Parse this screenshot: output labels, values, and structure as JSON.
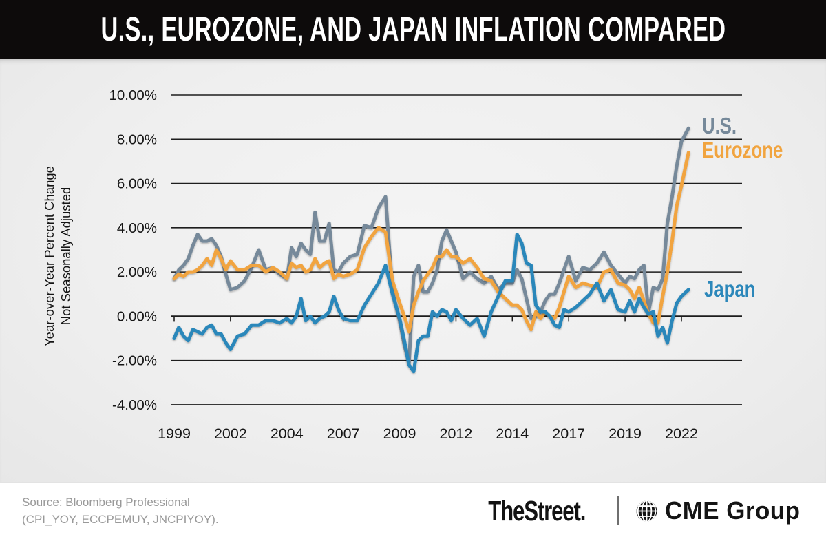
{
  "title": "U.S., EUROZONE, AND JAPAN INFLATION COMPARED",
  "chart_data": {
    "type": "line",
    "title": "U.S., EUROZONE, AND JAPAN INFLATION COMPARED",
    "ylabel_line1": "Year-over-Year Percent Change",
    "ylabel_line2": "Not Seasonally Adjusted",
    "grid": true,
    "legend_position": "right-inline",
    "y_ticks": [
      {
        "value": 10,
        "label": "10.00%"
      },
      {
        "value": 8,
        "label": "8.00%"
      },
      {
        "value": 6,
        "label": "6.00%"
      },
      {
        "value": 4,
        "label": "4.00%"
      },
      {
        "value": 2,
        "label": "2.00%"
      },
      {
        "value": 0,
        "label": "0.00%"
      },
      {
        "value": -2,
        "label": "-2.00%"
      },
      {
        "value": -4,
        "label": "-4.00%"
      }
    ],
    "ylim": [
      -4,
      10
    ],
    "x_ticks": [
      {
        "year": 1999,
        "label": "1999"
      },
      {
        "year": 2002,
        "label": "2002"
      },
      {
        "year": 2004,
        "label": "2004"
      },
      {
        "year": 2007,
        "label": "2007"
      },
      {
        "year": 2009,
        "label": "2009"
      },
      {
        "year": 2012,
        "label": "2012"
      },
      {
        "year": 2014,
        "label": "2014"
      },
      {
        "year": 2017,
        "label": "2017"
      },
      {
        "year": 2019,
        "label": "2019"
      },
      {
        "year": 2022,
        "label": "2022"
      }
    ],
    "x_start": 1999.0,
    "x_step": 0.25,
    "series": [
      {
        "name": "U.S.",
        "color": "#76899A",
        "values": [
          1.7,
          2.1,
          2.3,
          2.6,
          3.2,
          3.7,
          3.4,
          3.4,
          3.5,
          3.2,
          2.7,
          1.9,
          1.2,
          1.3,
          1.6,
          2.2,
          3.0,
          2.1,
          2.2,
          1.9,
          1.7,
          3.1,
          2.7,
          3.3,
          3.0,
          2.8,
          4.7,
          3.4,
          3.4,
          4.2,
          2.1,
          2.0,
          2.4,
          2.7,
          2.8,
          4.1,
          4.0,
          4.9,
          5.4,
          1.1,
          -0.2,
          -1.3,
          -2.1,
          1.8,
          2.3,
          1.1,
          1.1,
          1.5,
          2.1,
          3.4,
          3.9,
          3.4,
          2.9,
          1.7,
          2.0,
          1.7,
          1.5,
          1.8,
          1.2,
          1.5,
          1.5,
          2.1,
          1.7,
          0.8,
          -0.1,
          0.0,
          0.2,
          0.7,
          1.0,
          1.0,
          1.5,
          2.1,
          2.7,
          1.6,
          2.2,
          2.1,
          2.4,
          2.9,
          2.3,
          1.9,
          1.5,
          1.8,
          1.7,
          2.1,
          2.3,
          0.2,
          1.3,
          1.2,
          1.7,
          4.2,
          5.4,
          6.8,
          7.9,
          8.5
        ]
      },
      {
        "name": "Eurozone",
        "color": "#F1A43F",
        "values": [
          1.7,
          1.9,
          1.8,
          2.0,
          2.0,
          2.1,
          2.3,
          2.6,
          2.3,
          3.0,
          2.6,
          2.1,
          2.5,
          2.1,
          2.1,
          2.3,
          2.3,
          2.0,
          2.2,
          2.0,
          1.7,
          2.4,
          2.2,
          2.3,
          2.0,
          2.1,
          2.6,
          2.2,
          2.4,
          2.5,
          1.7,
          1.9,
          1.8,
          1.9,
          2.1,
          3.1,
          3.6,
          4.0,
          3.8,
          1.6,
          0.6,
          0.0,
          -0.7,
          0.5,
          1.1,
          1.6,
          1.9,
          2.2,
          2.7,
          2.7,
          3.0,
          2.7,
          2.7,
          2.4,
          2.6,
          2.2,
          1.7,
          1.6,
          1.1,
          0.8,
          0.5,
          0.5,
          0.3,
          -0.2,
          -0.6,
          0.2,
          -0.1,
          0.2,
          0.0,
          -0.1,
          0.4,
          1.1,
          1.8,
          1.3,
          1.5,
          1.4,
          1.3,
          2.0,
          2.1,
          1.5,
          1.4,
          1.2,
          0.8,
          1.3,
          0.7,
          0.1,
          -0.3,
          -0.3,
          0.9,
          2.0,
          3.4,
          5.0,
          5.9,
          7.4
        ]
      },
      {
        "name": "Japan",
        "color": "#2B87BA",
        "values": [
          -1.0,
          -0.5,
          -0.9,
          -1.1,
          -0.6,
          -0.7,
          -0.8,
          -0.5,
          -0.4,
          -0.8,
          -0.8,
          -1.2,
          -1.5,
          -0.9,
          -0.8,
          -0.4,
          -0.4,
          -0.2,
          -0.2,
          -0.3,
          -0.1,
          -0.3,
          0.0,
          0.8,
          -0.2,
          0.0,
          -0.3,
          -0.1,
          0.0,
          0.2,
          0.9,
          0.3,
          -0.1,
          -0.2,
          -0.2,
          0.5,
          1.0,
          1.5,
          2.3,
          1.0,
          -0.1,
          -1.1,
          -2.2,
          -2.5,
          -1.1,
          -0.9,
          -0.9,
          0.2,
          0.0,
          0.3,
          0.2,
          -0.2,
          0.3,
          -0.1,
          -0.4,
          -0.1,
          -0.9,
          0.2,
          0.9,
          1.6,
          1.6,
          3.7,
          3.3,
          2.4,
          2.3,
          0.5,
          0.2,
          0.2,
          0.0,
          -0.4,
          -0.5,
          0.3,
          0.2,
          0.4,
          0.7,
          1.0,
          1.5,
          0.7,
          1.2,
          0.3,
          0.2,
          0.7,
          0.2,
          0.8,
          0.4,
          0.1,
          0.2,
          -0.9,
          -0.5,
          -1.2,
          -0.2,
          0.6,
          0.9,
          1.2
        ]
      }
    ]
  },
  "colors": {
    "title_bar_bg": "#0d0b0b",
    "title_text": "#ffffff",
    "gridline": "#1d1d1d",
    "axis_text": "#161616",
    "source_text": "#999999",
    "us": "#76899A",
    "eurozone": "#F1A43F",
    "japan": "#2B87BA"
  },
  "footer": {
    "source_line1": "Source: Bloomberg Professional",
    "source_line2": "(CPI_YOY, ECCPEMUY, JNCPIYOY).",
    "logo_thestreet": "TheStreet",
    "logo_thestreet_dot": ".",
    "logo_cme": "CME Group"
  }
}
